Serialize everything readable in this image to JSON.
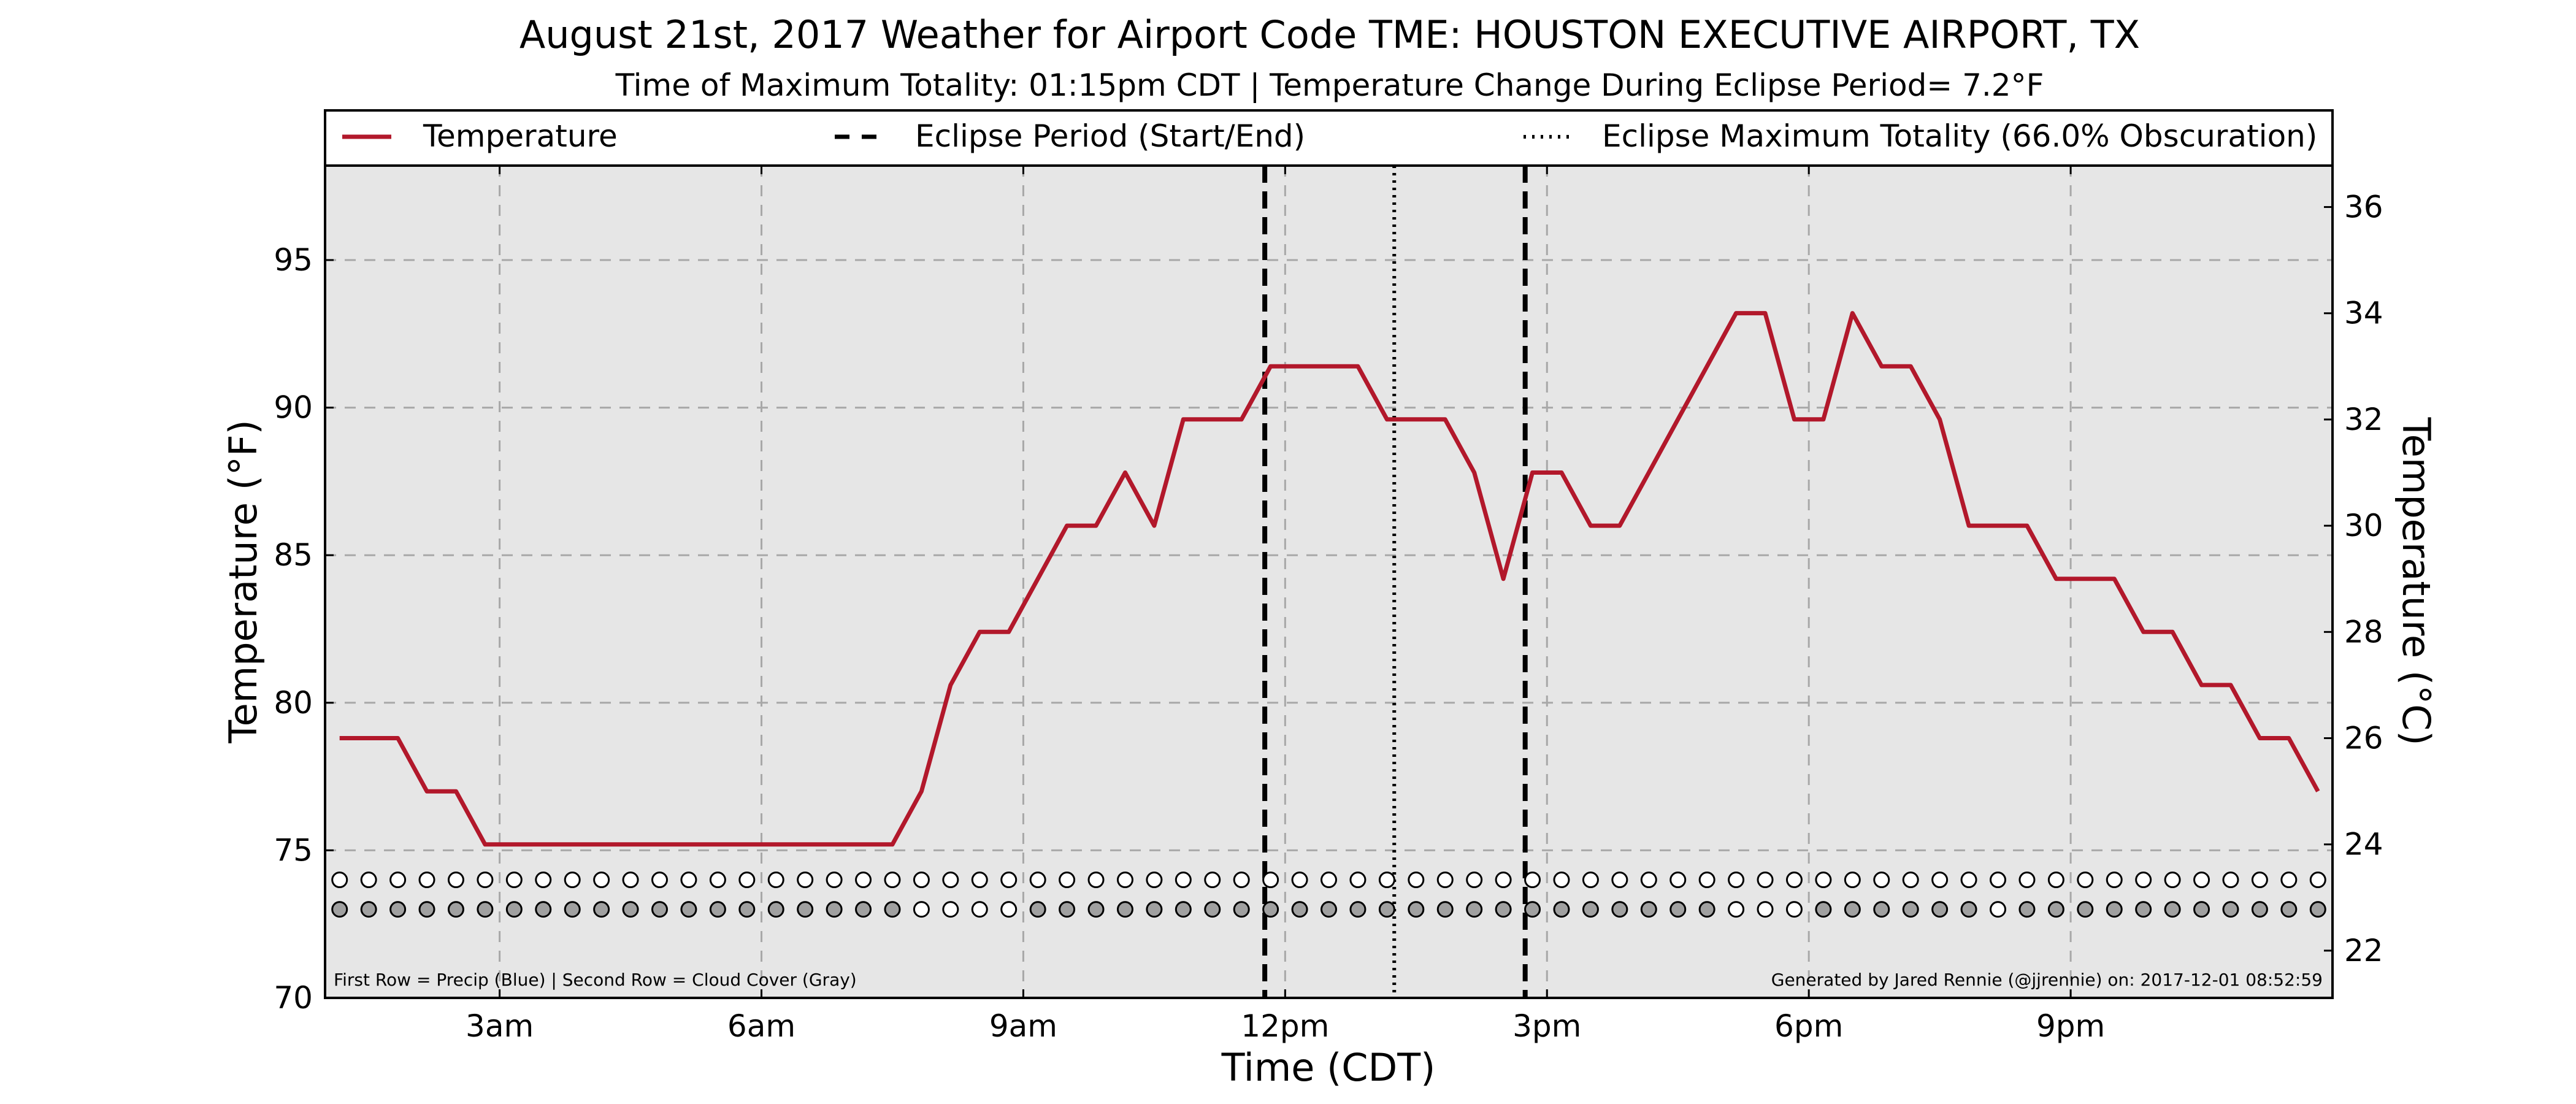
{
  "chart_data": {
    "type": "line",
    "title": "August 21st, 2017 Weather for Airport Code TME: HOUSTON EXECUTIVE AIRPORT, TX",
    "subtitle": "Time of Maximum Totality: 01:15pm CDT | Temperature Change During Eclipse Period= 7.2°F",
    "xlabel": "Time (CDT)",
    "ylabel": "Temperature (°F)",
    "ylabel_right": "Temperature (°C)",
    "xlim": [
      "01:00",
      "24:00"
    ],
    "ylim": [
      70,
      98.2
    ],
    "ylim_right": [
      21.11,
      36.78
    ],
    "x_ticks": [
      {
        "time": "03:00",
        "label": "3am"
      },
      {
        "time": "06:00",
        "label": "6am"
      },
      {
        "time": "09:00",
        "label": "9am"
      },
      {
        "time": "12:00",
        "label": "12pm"
      },
      {
        "time": "15:00",
        "label": "3pm"
      },
      {
        "time": "18:00",
        "label": "6pm"
      },
      {
        "time": "21:00",
        "label": "9pm"
      }
    ],
    "y_ticks": [
      70,
      75,
      80,
      85,
      90,
      95
    ],
    "y_ticks_right": [
      22,
      24,
      26,
      28,
      30,
      32,
      34,
      36
    ],
    "grid": true,
    "legend": {
      "placement": "top",
      "entries": [
        {
          "label": "Temperature",
          "style": "solid",
          "color": "#b2182b"
        },
        {
          "label": "Eclipse Period (Start/End)",
          "style": "dashed",
          "color": "#000000"
        },
        {
          "label": "Eclipse Maximum Totality (66.0% Obscuration)",
          "style": "dotted",
          "color": "#000000"
        }
      ]
    },
    "eclipse": {
      "start": "11:46",
      "max": "13:15",
      "end": "14:45"
    },
    "series": [
      {
        "name": "Temperature",
        "color": "#b2182b",
        "points": [
          [
            "01:10",
            78.8
          ],
          [
            "01:30",
            78.8
          ],
          [
            "01:50",
            78.8
          ],
          [
            "02:10",
            77.0
          ],
          [
            "02:30",
            77.0
          ],
          [
            "02:50",
            75.2
          ],
          [
            "03:10",
            75.2
          ],
          [
            "03:30",
            75.2
          ],
          [
            "03:50",
            75.2
          ],
          [
            "04:10",
            75.2
          ],
          [
            "04:30",
            75.2
          ],
          [
            "04:50",
            75.2
          ],
          [
            "05:10",
            75.2
          ],
          [
            "05:30",
            75.2
          ],
          [
            "05:50",
            75.2
          ],
          [
            "06:10",
            75.2
          ],
          [
            "06:30",
            75.2
          ],
          [
            "06:50",
            75.2
          ],
          [
            "07:10",
            75.2
          ],
          [
            "07:30",
            75.2
          ],
          [
            "07:50",
            77.0
          ],
          [
            "08:10",
            80.6
          ],
          [
            "08:30",
            82.4
          ],
          [
            "08:50",
            82.4
          ],
          [
            "09:10",
            84.2
          ],
          [
            "09:30",
            86.0
          ],
          [
            "09:50",
            86.0
          ],
          [
            "10:10",
            87.8
          ],
          [
            "10:30",
            86.0
          ],
          [
            "10:50",
            89.6
          ],
          [
            "11:10",
            89.6
          ],
          [
            "11:30",
            89.6
          ],
          [
            "11:50",
            91.4
          ],
          [
            "12:10",
            91.4
          ],
          [
            "12:30",
            91.4
          ],
          [
            "12:50",
            91.4
          ],
          [
            "13:10",
            89.6
          ],
          [
            "13:30",
            89.6
          ],
          [
            "13:50",
            89.6
          ],
          [
            "14:10",
            87.8
          ],
          [
            "14:30",
            84.2
          ],
          [
            "14:50",
            87.8
          ],
          [
            "15:10",
            87.8
          ],
          [
            "15:30",
            86.0
          ],
          [
            "15:50",
            86.0
          ],
          [
            "16:10",
            87.8
          ],
          [
            "16:30",
            89.6
          ],
          [
            "16:50",
            91.4
          ],
          [
            "17:10",
            93.2
          ],
          [
            "17:30",
            93.2
          ],
          [
            "17:50",
            89.6
          ],
          [
            "18:10",
            89.6
          ],
          [
            "18:30",
            93.2
          ],
          [
            "18:50",
            91.4
          ],
          [
            "19:10",
            91.4
          ],
          [
            "19:30",
            89.6
          ],
          [
            "19:50",
            86.0
          ],
          [
            "20:10",
            86.0
          ],
          [
            "20:30",
            86.0
          ],
          [
            "20:50",
            84.2
          ],
          [
            "21:10",
            84.2
          ],
          [
            "21:30",
            84.2
          ],
          [
            "21:50",
            82.4
          ],
          [
            "22:10",
            82.4
          ],
          [
            "22:30",
            80.6
          ],
          [
            "22:50",
            80.6
          ],
          [
            "23:10",
            78.8
          ],
          [
            "23:30",
            78.8
          ],
          [
            "23:50",
            77.0
          ]
        ]
      }
    ],
    "indicator_rows": {
      "precip": {
        "y": 74.0,
        "fill": "#ffffff",
        "times_start": "01:10",
        "times_step_minutes": 20,
        "count": 69
      },
      "cloud_cover": {
        "y": 73.0,
        "filled_color": "#a0a0a0",
        "empty_color": "#ffffff",
        "times_start": "01:10",
        "times_step_minutes": 20,
        "filled": [
          1,
          1,
          1,
          1,
          1,
          1,
          1,
          1,
          1,
          1,
          1,
          1,
          1,
          1,
          1,
          1,
          1,
          1,
          1,
          1,
          0,
          0,
          0,
          0,
          1,
          1,
          1,
          1,
          1,
          1,
          1,
          1,
          1,
          1,
          1,
          1,
          1,
          1,
          1,
          1,
          1,
          1,
          1,
          1,
          1,
          1,
          1,
          1,
          0,
          0,
          0,
          1,
          1,
          1,
          1,
          1,
          1,
          0,
          1,
          1,
          1,
          1,
          1,
          1,
          1,
          1,
          1,
          1,
          1
        ]
      }
    },
    "annotations": {
      "bottom_left": "First Row = Precip (Blue) | Second Row = Cloud Cover (Gray)",
      "bottom_right": "Generated by Jared Rennie (@jjrennie) on: 2017-12-01 08:52:59"
    }
  }
}
